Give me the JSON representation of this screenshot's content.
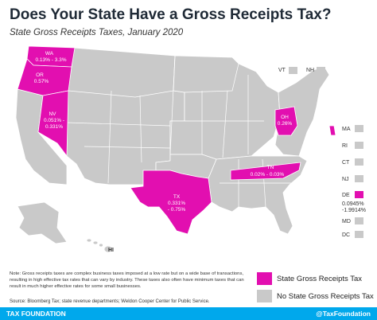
{
  "title": "Does Your State Have a Gross Receipts Tax?",
  "subtitle": "State Gross Receipts Taxes, January 2020",
  "colors": {
    "gross_receipts": "#e20fb0",
    "no_tax": "#c9c9c9",
    "borders": "#ffffff",
    "footer": "#00a8ec"
  },
  "states": {
    "wa": {
      "abbr": "WA",
      "rate": "0.13% - 3.3%",
      "has_tax": true
    },
    "or": {
      "abbr": "OR",
      "rate": "0.57%",
      "has_tax": true
    },
    "nv": {
      "abbr": "NV",
      "rate": "0.051% -",
      "rate2": "0.331%",
      "has_tax": true
    },
    "tx": {
      "abbr": "TX",
      "rate": "0.331%",
      "rate2": "- 0.75%",
      "has_tax": true
    },
    "oh": {
      "abbr": "OH",
      "rate": "0.26%",
      "has_tax": true
    },
    "tn": {
      "abbr": "TN",
      "rate": "0.02% - 0.03%",
      "has_tax": true
    },
    "de": {
      "abbr": "DE",
      "rate": "0.0945%",
      "rate2": "-1.9914%",
      "has_tax": true
    },
    "hi": {
      "abbr": "HI",
      "has_tax": false
    },
    "vt": {
      "abbr": "VT",
      "has_tax": false
    },
    "nh": {
      "abbr": "NH",
      "has_tax": false
    },
    "ma": {
      "abbr": "MA",
      "has_tax": false
    },
    "ri": {
      "abbr": "RI",
      "has_tax": false
    },
    "ct": {
      "abbr": "CT",
      "has_tax": false
    },
    "nj": {
      "abbr": "NJ",
      "has_tax": false
    },
    "md": {
      "abbr": "MD",
      "has_tax": false
    },
    "dc": {
      "abbr": "DC",
      "has_tax": false
    }
  },
  "legend": {
    "gross_receipts_label": "State Gross Receipts Tax",
    "no_tax_label": "No State Gross Receipts Tax"
  },
  "note": "Note: Gross receipts taxes are complex business taxes imposed at a low rate but on a wide base of transactions, resulting in high effective tax rates that can vary by industry. These taxes also often have minimum taxes that can result in much higher effective rates for some small businesses.",
  "source": "Source: Bloomberg Tax; state revenue departments; Weldon Cooper Center for Public Service.",
  "footer": {
    "org": "TAX FOUNDATION",
    "handle": "@TaxFoundation"
  }
}
